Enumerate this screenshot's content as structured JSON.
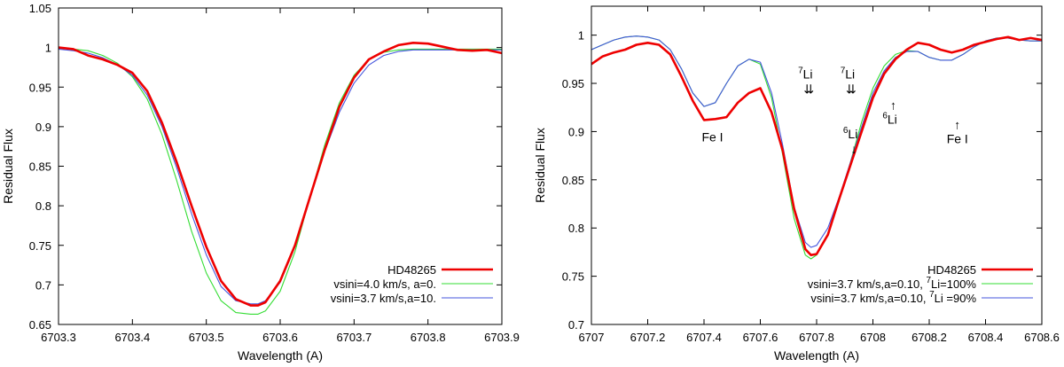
{
  "chart_data": [
    {
      "type": "line",
      "xlabel": "Wavelength (A)",
      "ylabel": "Residual Flux",
      "xlim": [
        6703.3,
        6703.9
      ],
      "ylim": [
        0.65,
        1.05
      ],
      "xticks": [
        "6703.3",
        "6703.4",
        "6703.5",
        "6703.6",
        "6703.7",
        "6703.8",
        "6703.9"
      ],
      "yticks": [
        "0.65",
        "0.7",
        "0.75",
        "0.8",
        "0.85",
        "0.9",
        "0.95",
        "1",
        "1.05"
      ],
      "legend_position": "bottom-right",
      "series": [
        {
          "name": "HD48265",
          "color": "#ee0000",
          "x": [
            6703.3,
            6703.32,
            6703.34,
            6703.36,
            6703.38,
            6703.4,
            6703.42,
            6703.44,
            6703.46,
            6703.48,
            6703.5,
            6703.52,
            6703.54,
            6703.56,
            6703.57,
            6703.58,
            6703.6,
            6703.62,
            6703.64,
            6703.66,
            6703.68,
            6703.7,
            6703.72,
            6703.74,
            6703.76,
            6703.78,
            6703.8,
            6703.82,
            6703.84,
            6703.86,
            6703.88,
            6703.9
          ],
          "values": [
            1.0,
            0.998,
            0.99,
            0.985,
            0.978,
            0.968,
            0.945,
            0.905,
            0.855,
            0.8,
            0.748,
            0.705,
            0.682,
            0.674,
            0.674,
            0.678,
            0.705,
            0.75,
            0.81,
            0.87,
            0.925,
            0.962,
            0.985,
            0.995,
            1.003,
            1.006,
            1.005,
            1.001,
            0.997,
            0.996,
            0.997,
            0.993
          ]
        },
        {
          "name": "vsini=4.0 km/s, a=0.",
          "color": "#33dd33",
          "x": [
            6703.3,
            6703.32,
            6703.34,
            6703.36,
            6703.38,
            6703.4,
            6703.42,
            6703.44,
            6703.46,
            6703.48,
            6703.5,
            6703.52,
            6703.54,
            6703.56,
            6703.57,
            6703.58,
            6703.6,
            6703.62,
            6703.64,
            6703.66,
            6703.68,
            6703.7,
            6703.72,
            6703.74,
            6703.76,
            6703.78,
            6703.8,
            6703.82,
            6703.84,
            6703.86,
            6703.88,
            6703.9
          ],
          "values": [
            0.999,
            0.998,
            0.996,
            0.99,
            0.98,
            0.963,
            0.935,
            0.89,
            0.832,
            0.768,
            0.715,
            0.68,
            0.665,
            0.663,
            0.663,
            0.667,
            0.692,
            0.742,
            0.81,
            0.876,
            0.93,
            0.965,
            0.985,
            0.994,
            0.997,
            0.998,
            0.998,
            0.998,
            0.998,
            0.998,
            0.998,
            0.998
          ]
        },
        {
          "name": "vsini=3.7 km/s,a=10.",
          "color": "#4455dd",
          "x": [
            6703.3,
            6703.32,
            6703.34,
            6703.36,
            6703.38,
            6703.4,
            6703.42,
            6703.44,
            6703.46,
            6703.48,
            6703.5,
            6703.52,
            6703.54,
            6703.56,
            6703.57,
            6703.58,
            6703.6,
            6703.62,
            6703.64,
            6703.66,
            6703.68,
            6703.7,
            6703.72,
            6703.74,
            6703.76,
            6703.78,
            6703.8,
            6703.82,
            6703.84,
            6703.86,
            6703.88,
            6703.9
          ],
          "values": [
            0.998,
            0.996,
            0.993,
            0.987,
            0.978,
            0.965,
            0.94,
            0.9,
            0.848,
            0.79,
            0.738,
            0.698,
            0.68,
            0.676,
            0.676,
            0.68,
            0.703,
            0.748,
            0.81,
            0.868,
            0.918,
            0.955,
            0.978,
            0.99,
            0.995,
            0.997,
            0.997,
            0.997,
            0.997,
            0.997,
            0.997,
            0.997
          ]
        }
      ],
      "annotations": []
    },
    {
      "type": "line",
      "xlabel": "Wavelength (A)",
      "ylabel": "Residual Flux",
      "xlim": [
        6707,
        6708.6
      ],
      "ylim": [
        0.7,
        1.03
      ],
      "xticks": [
        "6707",
        "6707.2",
        "6707.4",
        "6707.6",
        "6707.8",
        "6708",
        "6708.2",
        "6708.4",
        "6708.6"
      ],
      "yticks": [
        "0.7",
        "0.75",
        "0.8",
        "0.85",
        "0.9",
        "0.95",
        "1"
      ],
      "legend_position": "bottom-right",
      "series": [
        {
          "name": "HD48265",
          "color": "#ee0000",
          "legend_prefix": "",
          "legend_sup": "",
          "legend_suffix": "",
          "x": [
            6707.0,
            6707.04,
            6707.08,
            6707.12,
            6707.16,
            6707.2,
            6707.24,
            6707.28,
            6707.32,
            6707.36,
            6707.4,
            6707.44,
            6707.48,
            6707.52,
            6707.56,
            6707.6,
            6707.64,
            6707.68,
            6707.72,
            6707.76,
            6707.78,
            6707.8,
            6707.84,
            6707.88,
            6707.92,
            6707.96,
            6708.0,
            6708.04,
            6708.08,
            6708.12,
            6708.16,
            6708.2,
            6708.24,
            6708.28,
            6708.32,
            6708.36,
            6708.4,
            6708.44,
            6708.48,
            6708.52,
            6708.56,
            6708.6
          ],
          "values": [
            0.97,
            0.978,
            0.982,
            0.985,
            0.99,
            0.992,
            0.99,
            0.98,
            0.957,
            0.932,
            0.912,
            0.913,
            0.915,
            0.93,
            0.94,
            0.945,
            0.92,
            0.88,
            0.82,
            0.778,
            0.772,
            0.773,
            0.793,
            0.83,
            0.865,
            0.9,
            0.935,
            0.96,
            0.975,
            0.985,
            0.992,
            0.99,
            0.985,
            0.982,
            0.985,
            0.99,
            0.993,
            0.996,
            0.998,
            0.995,
            0.997,
            0.995
          ]
        },
        {
          "name": "vsini=3.7 km/s,a=0.10,",
          "color": "#33dd33",
          "legend_prefix": "vsini=3.7 km/s,a=0.10, ",
          "legend_sup": "7",
          "legend_suffix": "Li=100%",
          "x": [
            6707.0,
            6707.04,
            6707.08,
            6707.12,
            6707.16,
            6707.2,
            6707.24,
            6707.28,
            6707.32,
            6707.36,
            6707.4,
            6707.44,
            6707.48,
            6707.52,
            6707.56,
            6707.6,
            6707.64,
            6707.68,
            6707.72,
            6707.76,
            6707.78,
            6707.8,
            6707.84,
            6707.88,
            6707.92,
            6707.96,
            6708.0,
            6708.04,
            6708.08,
            6708.12,
            6708.16,
            6708.2,
            6708.24,
            6708.28,
            6708.32,
            6708.36,
            6708.4,
            6708.44,
            6708.48,
            6708.52,
            6708.56,
            6708.6
          ],
          "values": [
            0.985,
            0.99,
            0.995,
            0.998,
            0.999,
            0.998,
            0.995,
            0.985,
            0.965,
            0.94,
            0.926,
            0.93,
            0.95,
            0.968,
            0.975,
            0.97,
            0.935,
            0.875,
            0.81,
            0.772,
            0.768,
            0.772,
            0.793,
            0.828,
            0.868,
            0.91,
            0.945,
            0.968,
            0.98,
            0.984,
            0.983,
            0.977,
            0.974,
            0.974,
            0.98,
            0.988,
            0.994,
            0.997,
            0.997,
            0.995,
            0.994,
            0.994
          ]
        },
        {
          "name": "vsini=3.7 km/s,a=0.10,",
          "color": "#4455dd",
          "legend_prefix": "vsini=3.7 km/s,a=0.10, ",
          "legend_sup": "7",
          "legend_suffix": "Li =90%",
          "x": [
            6707.0,
            6707.04,
            6707.08,
            6707.12,
            6707.16,
            6707.2,
            6707.24,
            6707.28,
            6707.32,
            6707.36,
            6707.4,
            6707.44,
            6707.48,
            6707.52,
            6707.56,
            6707.6,
            6707.64,
            6707.68,
            6707.72,
            6707.76,
            6707.78,
            6707.8,
            6707.84,
            6707.88,
            6707.92,
            6707.96,
            6708.0,
            6708.04,
            6708.08,
            6708.12,
            6708.16,
            6708.2,
            6708.24,
            6708.28,
            6708.32,
            6708.36,
            6708.4,
            6708.44,
            6708.48,
            6708.52,
            6708.56,
            6708.6
          ],
          "values": [
            0.985,
            0.99,
            0.995,
            0.998,
            0.999,
            0.998,
            0.995,
            0.985,
            0.965,
            0.94,
            0.926,
            0.93,
            0.95,
            0.968,
            0.975,
            0.972,
            0.94,
            0.885,
            0.822,
            0.785,
            0.78,
            0.782,
            0.8,
            0.832,
            0.868,
            0.905,
            0.94,
            0.963,
            0.977,
            0.983,
            0.983,
            0.977,
            0.974,
            0.974,
            0.98,
            0.988,
            0.994,
            0.997,
            0.997,
            0.995,
            0.994,
            0.994
          ]
        }
      ],
      "annotations": [
        {
          "id": "fe1-left",
          "sup": "",
          "text": "Fe I",
          "arrow": "",
          "x": 6707.43,
          "y": 0.89
        },
        {
          "id": "li7-a",
          "sup": "7",
          "text": "Li",
          "arrow": "⇊",
          "x": 6707.76,
          "y": 0.955
        },
        {
          "id": "li7-b",
          "sup": "7",
          "text": "Li",
          "arrow": "⇊",
          "x": 6707.91,
          "y": 0.955
        },
        {
          "id": "li6-a",
          "sup": "6",
          "text": "Li",
          "arrow": "↓",
          "x": 6707.92,
          "y": 0.893
        },
        {
          "id": "li6-b",
          "sup": "6",
          "text": "Li",
          "arrow": "↑",
          "x": 6708.06,
          "y": 0.908
        },
        {
          "id": "fe1-right",
          "sup": "",
          "text": "Fe I",
          "arrow": "↑",
          "x": 6708.3,
          "y": 0.888
        }
      ]
    }
  ]
}
